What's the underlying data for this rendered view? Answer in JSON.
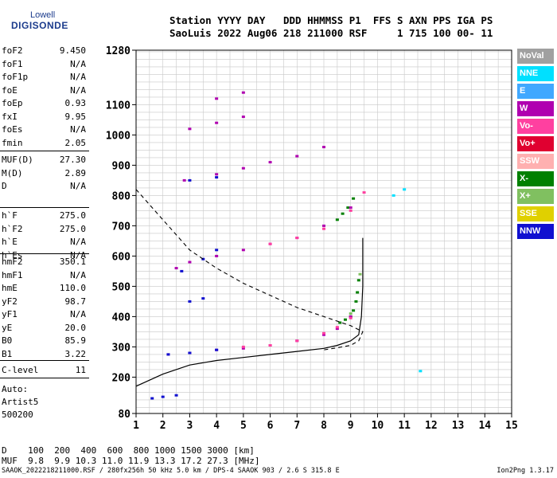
{
  "logo": {
    "line1": "Lowell",
    "line2": "DIGISONDE"
  },
  "header": {
    "row1": "Station YYYY DAY   DDD HHMMSS P1  FFS S AXN PPS IGA PS",
    "row2": "SaoLuis 2022 Aug06 218 211000 RSF     1 715 100 00- 11"
  },
  "params_group1": [
    {
      "label": "foF2",
      "value": "9.450"
    },
    {
      "label": "foF1",
      "value": "N/A"
    },
    {
      "label": "foF1p",
      "value": "N/A"
    },
    {
      "label": "foE",
      "value": "N/A"
    },
    {
      "label": "foEp",
      "value": "0.93"
    },
    {
      "label": "fxI",
      "value": "9.95"
    },
    {
      "label": "foEs",
      "value": "N/A"
    },
    {
      "label": "fmin",
      "value": "2.05"
    }
  ],
  "params_group2": [
    {
      "label": "MUF(D)",
      "value": "27.30"
    },
    {
      "label": "M(D)",
      "value": "2.89"
    },
    {
      "label": "D",
      "value": "N/A"
    }
  ],
  "params_group3": [
    {
      "label": "h`F",
      "value": "275.0"
    },
    {
      "label": "h`F2",
      "value": "275.0"
    },
    {
      "label": "h`E",
      "value": "N/A"
    },
    {
      "label": "h`Es",
      "value": "N/A"
    }
  ],
  "params_group4": [
    {
      "label": "hmF2",
      "value": "350.1"
    },
    {
      "label": "hmF1",
      "value": "N/A"
    },
    {
      "label": "hmE",
      "value": "110.0"
    },
    {
      "label": "yF2",
      "value": "98.7"
    },
    {
      "label": "yF1",
      "value": "N/A"
    },
    {
      "label": "yE",
      "value": "20.0"
    },
    {
      "label": "B0",
      "value": "85.9"
    },
    {
      "label": "B1",
      "value": "3.22"
    }
  ],
  "params_group5": [
    {
      "label": "C-level",
      "value": "11"
    }
  ],
  "autoscale": {
    "line1": "Auto:",
    "line2": "Artist5",
    "line3": "500200"
  },
  "legend": [
    {
      "label": "NoVal",
      "color": "#a0a0a0"
    },
    {
      "label": "NNE",
      "color": "#00e0ff"
    },
    {
      "label": "E",
      "color": "#40a8ff"
    },
    {
      "label": "W",
      "color": "#b000b0"
    },
    {
      "label": "Vo-",
      "color": "#ff40a0"
    },
    {
      "label": "Vo+",
      "color": "#e00030"
    },
    {
      "label": "SSW",
      "color": "#ffb0b0"
    },
    {
      "label": "X-",
      "color": "#008000"
    },
    {
      "label": "X+",
      "color": "#80c060"
    },
    {
      "label": "SSE",
      "color": "#e0d000"
    },
    {
      "label": "NNW",
      "color": "#1010d0"
    }
  ],
  "muf_table": {
    "row1": "D    100  200  400  600  800 1000 1500 3000 [km]",
    "row2": "MUF  9.8  9.9 10.3 11.0 11.9 13.3 17.2 27.3 [MHz]"
  },
  "footer": {
    "left": "SAAOK_2022218211000.RSF / 280fx256h 50 kHz 5.0 km / DPS-4 SAAOK 903 / 2.6 S 315.8 E",
    "right": "Ion2Png 1.3.17"
  },
  "chart_data": {
    "type": "scatter",
    "xlabel": "",
    "ylabel": "",
    "xlim": [
      1,
      15
    ],
    "ylim": [
      80,
      1280
    ],
    "xticks": [
      "1",
      "2",
      "3",
      "4",
      "5",
      "6",
      "7",
      "8",
      "9",
      "10",
      "11",
      "12",
      "13",
      "14",
      "15"
    ],
    "yticks": [
      "80",
      "200",
      "300",
      "400",
      "500",
      "600",
      "700",
      "800",
      "900",
      "1000",
      "1100",
      "1280"
    ],
    "grid": true,
    "series": [
      {
        "name": "X-",
        "color": "#008000",
        "points": [
          [
            8.6,
            380
          ],
          [
            8.8,
            390
          ],
          [
            9.0,
            400
          ],
          [
            9.1,
            420
          ],
          [
            9.2,
            450
          ],
          [
            9.25,
            480
          ],
          [
            9.3,
            520
          ],
          [
            8.5,
            720
          ],
          [
            8.7,
            740
          ],
          [
            8.9,
            760
          ],
          [
            9.1,
            790
          ]
        ]
      },
      {
        "name": "W",
        "color": "#b000b0",
        "points": [
          [
            2.2,
            275
          ],
          [
            3,
            280
          ],
          [
            4,
            290
          ],
          [
            5,
            295
          ],
          [
            6,
            305
          ],
          [
            7,
            320
          ],
          [
            8,
            340
          ],
          [
            8.5,
            360
          ],
          [
            9,
            400
          ],
          [
            2.5,
            560
          ],
          [
            3,
            580
          ],
          [
            4,
            600
          ],
          [
            5,
            620
          ],
          [
            6,
            640
          ],
          [
            7,
            660
          ],
          [
            8,
            700
          ],
          [
            9,
            760
          ],
          [
            2.8,
            850
          ],
          [
            4,
            870
          ],
          [
            5,
            890
          ],
          [
            6,
            910
          ],
          [
            7,
            930
          ],
          [
            8,
            960
          ],
          [
            4,
            1120
          ],
          [
            5,
            1140
          ],
          [
            3,
            1020
          ],
          [
            4,
            1040
          ],
          [
            5,
            1060
          ]
        ]
      },
      {
        "name": "Vo-",
        "color": "#ff40a0",
        "points": [
          [
            5,
            300
          ],
          [
            6,
            305
          ],
          [
            7,
            320
          ],
          [
            8,
            345
          ],
          [
            8.5,
            365
          ],
          [
            9,
            395
          ],
          [
            6,
            640
          ],
          [
            7,
            660
          ],
          [
            8,
            690
          ],
          [
            9,
            750
          ],
          [
            9.5,
            810
          ]
        ]
      },
      {
        "name": "NNW",
        "color": "#1010d0",
        "points": [
          [
            1.6,
            130
          ],
          [
            2,
            135
          ],
          [
            2.5,
            140
          ],
          [
            2.2,
            275
          ],
          [
            3,
            280
          ],
          [
            4,
            290
          ],
          [
            2.7,
            550
          ],
          [
            3.5,
            590
          ],
          [
            4,
            620
          ],
          [
            3,
            450
          ],
          [
            3.5,
            460
          ],
          [
            3,
            850
          ],
          [
            4,
            860
          ]
        ]
      },
      {
        "name": "NNE",
        "color": "#00e0ff",
        "points": [
          [
            10.6,
            800
          ],
          [
            11,
            820
          ],
          [
            11.6,
            220
          ]
        ]
      },
      {
        "name": "X+",
        "color": "#80c060",
        "points": [
          [
            9.35,
            540
          ],
          [
            9.0,
            410
          ]
        ]
      }
    ],
    "virtual_height_trace": [
      [
        1,
        170
      ],
      [
        1.5,
        190
      ],
      [
        2,
        210
      ],
      [
        3,
        240
      ],
      [
        4,
        255
      ],
      [
        5,
        265
      ],
      [
        6,
        275
      ],
      [
        7,
        285
      ],
      [
        8,
        295
      ],
      [
        8.5,
        305
      ],
      [
        9,
        320
      ],
      [
        9.3,
        340
      ],
      [
        9.4,
        400
      ],
      [
        9.45,
        500
      ],
      [
        9.45,
        660
      ]
    ],
    "dashed_trace": [
      [
        1,
        820
      ],
      [
        2,
        720
      ],
      [
        3,
        620
      ],
      [
        4,
        560
      ],
      [
        5,
        510
      ],
      [
        6,
        470
      ],
      [
        7,
        430
      ],
      [
        8,
        400
      ],
      [
        9,
        370
      ],
      [
        9.45,
        350
      ],
      [
        9.3,
        320
      ],
      [
        9,
        305
      ],
      [
        8.5,
        297
      ],
      [
        8,
        290
      ]
    ]
  }
}
